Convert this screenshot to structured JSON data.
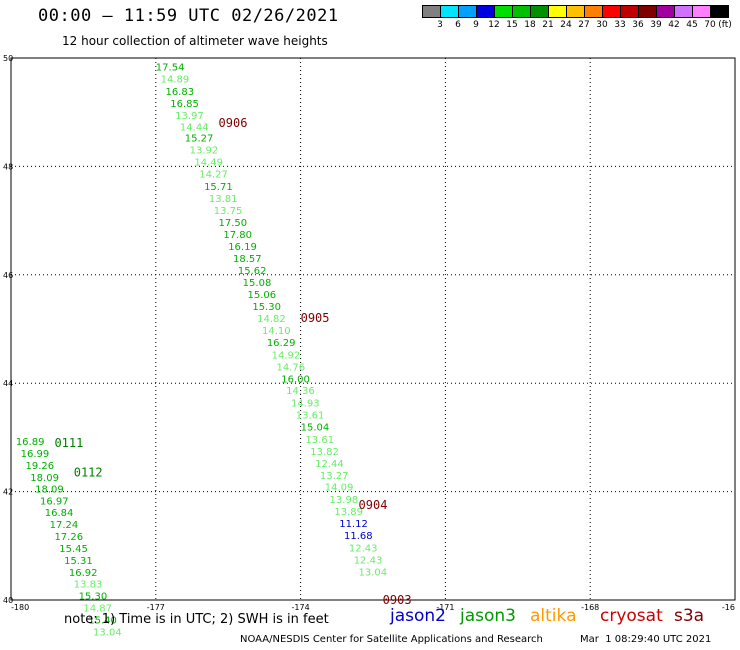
{
  "header": {
    "title": "00:00 — 11:59 UTC 02/26/2021",
    "subtitle": "12 hour collection of altimeter wave heights"
  },
  "legend": {
    "unit": "(ft)",
    "bins": [
      {
        "label": "3",
        "color": "#808080"
      },
      {
        "label": "6",
        "color": "#00e5ff"
      },
      {
        "label": "9",
        "color": "#00a0ff"
      },
      {
        "label": "12",
        "color": "#0000e0"
      },
      {
        "label": "15",
        "color": "#00e000"
      },
      {
        "label": "18",
        "color": "#00c000"
      },
      {
        "label": "21",
        "color": "#009000"
      },
      {
        "label": "24",
        "color": "#ffff00"
      },
      {
        "label": "27",
        "color": "#ffc000"
      },
      {
        "label": "30",
        "color": "#ff8000"
      },
      {
        "label": "33",
        "color": "#ff0000"
      },
      {
        "label": "36",
        "color": "#c00000"
      },
      {
        "label": "39",
        "color": "#800000"
      },
      {
        "label": "42",
        "color": "#a000a0"
      },
      {
        "label": "45",
        "color": "#d070ff"
      },
      {
        "label": "70",
        "color": "#ff80ff"
      },
      {
        "label": "",
        "color": "#000000"
      }
    ]
  },
  "axes": {
    "lat_labels": [
      "50",
      "48",
      "46",
      "44",
      "42",
      "40"
    ],
    "lon_labels": [
      "-180",
      "-177",
      "-174",
      "-171",
      "-168",
      "-16"
    ]
  },
  "chart_data": {
    "type": "scatter",
    "xlabel": "",
    "ylabel": "",
    "xlim": [
      -180,
      -165
    ],
    "ylim": [
      40,
      50
    ],
    "grid": true,
    "time_labels": [
      {
        "text": "0906",
        "lon": -175.7,
        "lat": 48.8,
        "color": "#800000"
      },
      {
        "text": "0905",
        "lon": -174.0,
        "lat": 45.2,
        "color": "#800000"
      },
      {
        "text": "0904",
        "lon": -172.8,
        "lat": 41.75,
        "color": "#800000"
      },
      {
        "text": "0903",
        "lon": -172.3,
        "lat": 40.0,
        "color": "#800000"
      },
      {
        "text": "0111",
        "lon": -179.1,
        "lat": 42.9,
        "color": "#008000"
      },
      {
        "text": "0112",
        "lon": -178.7,
        "lat": 42.35,
        "color": "#008000"
      }
    ],
    "series": [
      {
        "name": "jason3",
        "points": [
          {
            "text": "17.54",
            "lon": -177.0,
            "lat": 49.84,
            "color": "#00b000"
          },
          {
            "text": "14.89",
            "lon": -176.9,
            "lat": 49.62,
            "color": "#66ee66"
          },
          {
            "text": "16.83",
            "lon": -176.8,
            "lat": 49.39,
            "color": "#00b000"
          },
          {
            "text": "16.85",
            "lon": -176.7,
            "lat": 49.17,
            "color": "#00b000"
          },
          {
            "text": "13.97",
            "lon": -176.6,
            "lat": 48.95,
            "color": "#66ee66"
          },
          {
            "text": "14.44",
            "lon": -176.5,
            "lat": 48.74,
            "color": "#66ee66"
          },
          {
            "text": "15.27",
            "lon": -176.4,
            "lat": 48.53,
            "color": "#00b000"
          },
          {
            "text": "13.92",
            "lon": -176.3,
            "lat": 48.31,
            "color": "#66ee66"
          },
          {
            "text": "14.49",
            "lon": -176.2,
            "lat": 48.09,
            "color": "#66ee66"
          },
          {
            "text": "14.27",
            "lon": -176.1,
            "lat": 47.87,
            "color": "#66ee66"
          },
          {
            "text": "15.71",
            "lon": -176.0,
            "lat": 47.64,
            "color": "#00b000"
          },
          {
            "text": "13.81",
            "lon": -175.9,
            "lat": 47.42,
            "color": "#66ee66"
          },
          {
            "text": "13.75",
            "lon": -175.8,
            "lat": 47.2,
            "color": "#66ee66"
          },
          {
            "text": "17.50",
            "lon": -175.7,
            "lat": 46.97,
            "color": "#00b000"
          },
          {
            "text": "17.80",
            "lon": -175.6,
            "lat": 46.75,
            "color": "#00b000"
          },
          {
            "text": "16.19",
            "lon": -175.5,
            "lat": 46.53,
            "color": "#00b000"
          },
          {
            "text": "18.57",
            "lon": -175.4,
            "lat": 46.31,
            "color": "#00b000"
          },
          {
            "text": "15.62",
            "lon": -175.3,
            "lat": 46.09,
            "color": "#00b000"
          },
          {
            "text": "15.08",
            "lon": -175.2,
            "lat": 45.87,
            "color": "#00b000"
          },
          {
            "text": "15.06",
            "lon": -175.1,
            "lat": 45.65,
            "color": "#00b000"
          },
          {
            "text": "15.30",
            "lon": -175.0,
            "lat": 45.42,
            "color": "#00b000"
          },
          {
            "text": "14.82",
            "lon": -174.9,
            "lat": 45.2,
            "color": "#66ee66"
          },
          {
            "text": "14.10",
            "lon": -174.8,
            "lat": 44.98,
            "color": "#66ee66"
          },
          {
            "text": "16.29",
            "lon": -174.7,
            "lat": 44.76,
            "color": "#00b000"
          },
          {
            "text": "14.92",
            "lon": -174.6,
            "lat": 44.53,
            "color": "#66ee66"
          },
          {
            "text": "14.76",
            "lon": -174.5,
            "lat": 44.31,
            "color": "#66ee66"
          },
          {
            "text": "16.00",
            "lon": -174.4,
            "lat": 44.09,
            "color": "#00b000"
          },
          {
            "text": "14.36",
            "lon": -174.3,
            "lat": 43.87,
            "color": "#66ee66"
          },
          {
            "text": "14.93",
            "lon": -174.2,
            "lat": 43.64,
            "color": "#66ee66"
          },
          {
            "text": "13.61",
            "lon": -174.1,
            "lat": 43.42,
            "color": "#66ee66"
          },
          {
            "text": "15.04",
            "lon": -174.0,
            "lat": 43.2,
            "color": "#00b000"
          },
          {
            "text": "13.61",
            "lon": -173.9,
            "lat": 42.97,
            "color": "#66ee66"
          },
          {
            "text": "13.82",
            "lon": -173.8,
            "lat": 42.75,
            "color": "#66ee66"
          },
          {
            "text": "12.44",
            "lon": -173.7,
            "lat": 42.53,
            "color": "#66ee66"
          },
          {
            "text": "13.27",
            "lon": -173.6,
            "lat": 42.31,
            "color": "#66ee66"
          },
          {
            "text": "14.09",
            "lon": -173.5,
            "lat": 42.09,
            "color": "#66ee66"
          },
          {
            "text": "13.98",
            "lon": -173.4,
            "lat": 41.86,
            "color": "#66ee66"
          },
          {
            "text": "13.89",
            "lon": -173.3,
            "lat": 41.64,
            "color": "#66ee66"
          },
          {
            "text": "11.12",
            "lon": -173.2,
            "lat": 41.42,
            "color": "#0000cc"
          },
          {
            "text": "11.68",
            "lon": -173.1,
            "lat": 41.2,
            "color": "#0000cc"
          },
          {
            "text": "12.43",
            "lon": -173.0,
            "lat": 40.97,
            "color": "#66ee66"
          },
          {
            "text": "12.43",
            "lon": -172.9,
            "lat": 40.75,
            "color": "#66ee66"
          },
          {
            "text": "13.04",
            "lon": -172.8,
            "lat": 40.53,
            "color": "#66ee66"
          },
          {
            "text": "16.89",
            "lon": -179.9,
            "lat": 42.93,
            "color": "#00b000"
          },
          {
            "text": "16.99",
            "lon": -179.8,
            "lat": 42.71,
            "color": "#00b000"
          },
          {
            "text": "19.26",
            "lon": -179.7,
            "lat": 42.49,
            "color": "#00b000"
          },
          {
            "text": "18.09",
            "lon": -179.6,
            "lat": 42.27,
            "color": "#00b000"
          },
          {
            "text": "18.09",
            "lon": -179.5,
            "lat": 42.06,
            "color": "#00b000"
          },
          {
            "text": "16.97",
            "lon": -179.4,
            "lat": 41.84,
            "color": "#00b000"
          },
          {
            "text": "16.84",
            "lon": -179.3,
            "lat": 41.62,
            "color": "#00b000"
          },
          {
            "text": "17.24",
            "lon": -179.2,
            "lat": 41.4,
            "color": "#00b000"
          },
          {
            "text": "17.26",
            "lon": -179.1,
            "lat": 41.18,
            "color": "#00b000"
          },
          {
            "text": "15.45",
            "lon": -179.0,
            "lat": 40.96,
            "color": "#00b000"
          },
          {
            "text": "15.31",
            "lon": -178.9,
            "lat": 40.74,
            "color": "#00b000"
          },
          {
            "text": "16.92",
            "lon": -178.8,
            "lat": 40.52,
            "color": "#00b000"
          },
          {
            "text": "13.83",
            "lon": -178.7,
            "lat": 40.3,
            "color": "#66ee66"
          },
          {
            "text": "15.30",
            "lon": -178.6,
            "lat": 40.08,
            "color": "#00b000"
          },
          {
            "text": "14.87",
            "lon": -178.5,
            "lat": 39.86,
            "color": "#66ee66"
          },
          {
            "text": "15.40",
            "lon": -178.4,
            "lat": 39.64,
            "color": "#00b000"
          },
          {
            "text": "13.04",
            "lon": -178.3,
            "lat": 39.42,
            "color": "#66ee66"
          }
        ]
      }
    ]
  },
  "footer": {
    "note": "note: 1) Time is in UTC; 2) SWH is in feet",
    "satellites": [
      {
        "name": "jason2",
        "color": "#0000cc"
      },
      {
        "name": "jason3",
        "color": "#009900"
      },
      {
        "name": "altika",
        "color": "#ff9900"
      },
      {
        "name": "cryosat",
        "color": "#cc0000"
      },
      {
        "name": "s3a",
        "color": "#800000"
      }
    ],
    "credit": "NOAA/NESDIS Center for Satellite Applications and Research",
    "timestamp": "Mar  1 08:29:40 UTC 2021"
  }
}
